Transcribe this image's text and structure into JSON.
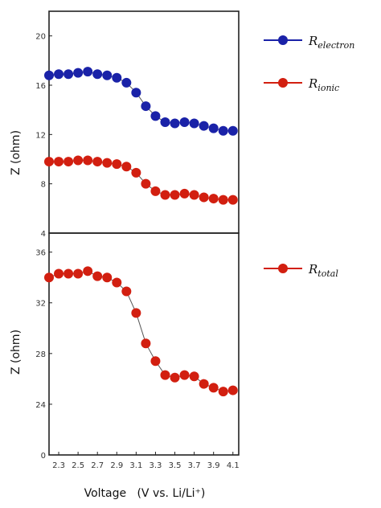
{
  "chart_data": [
    {
      "type": "line",
      "panel": "top",
      "ylabel": "Z (ohm)",
      "ylim": [
        4,
        22
      ],
      "yticks": [
        4,
        8,
        12,
        16,
        20
      ],
      "xlim": [
        2.2,
        4.16
      ],
      "x": [
        2.2,
        2.3,
        2.4,
        2.5,
        2.6,
        2.7,
        2.8,
        2.9,
        3.0,
        3.1,
        3.2,
        3.3,
        3.4,
        3.5,
        3.6,
        3.7,
        3.8,
        3.9,
        4.0,
        4.1
      ],
      "grid": false,
      "legend_position": "right",
      "series": [
        {
          "name_main": "R",
          "name_sub": "electron",
          "color": "#1a22a8",
          "values": [
            16.8,
            16.9,
            16.9,
            17.0,
            17.1,
            16.9,
            16.8,
            16.6,
            16.2,
            15.4,
            14.3,
            13.5,
            13.0,
            12.9,
            13.0,
            12.9,
            12.7,
            12.5,
            12.3,
            12.3
          ]
        },
        {
          "name_main": "R",
          "name_sub": "ionic",
          "color": "#d21f10",
          "values": [
            9.8,
            9.8,
            9.8,
            9.9,
            9.9,
            9.8,
            9.7,
            9.6,
            9.4,
            8.9,
            8.0,
            7.4,
            7.1,
            7.1,
            7.2,
            7.1,
            6.9,
            6.8,
            6.7,
            6.7
          ]
        }
      ]
    },
    {
      "type": "line",
      "panel": "bottom",
      "ylabel": "Z (ohm)",
      "xlabel": "Voltage   (V vs. Li/Li⁺)",
      "ylim": [
        20,
        37.5
      ],
      "yticks_shown": [
        "0",
        "24",
        "28",
        "32",
        "36"
      ],
      "xlim": [
        2.2,
        4.16
      ],
      "xticks": [
        "2.3",
        "2.5",
        "2.7",
        "2.9",
        "3.1",
        "3.3",
        "3.5",
        "3.7",
        "3.9",
        "4.1"
      ],
      "x": [
        2.2,
        2.3,
        2.4,
        2.5,
        2.6,
        2.7,
        2.8,
        2.9,
        3.0,
        3.1,
        3.2,
        3.3,
        3.4,
        3.5,
        3.6,
        3.7,
        3.8,
        3.9,
        4.0,
        4.1
      ],
      "grid": false,
      "legend_position": "right",
      "series": [
        {
          "name_main": "R",
          "name_sub": "total",
          "color": "#d21f10",
          "values": [
            34.0,
            34.3,
            34.3,
            34.3,
            34.5,
            34.1,
            34.0,
            33.6,
            32.9,
            31.2,
            28.8,
            27.4,
            26.3,
            26.1,
            26.3,
            26.2,
            25.6,
            25.3,
            25.0,
            25.1
          ]
        }
      ]
    }
  ]
}
